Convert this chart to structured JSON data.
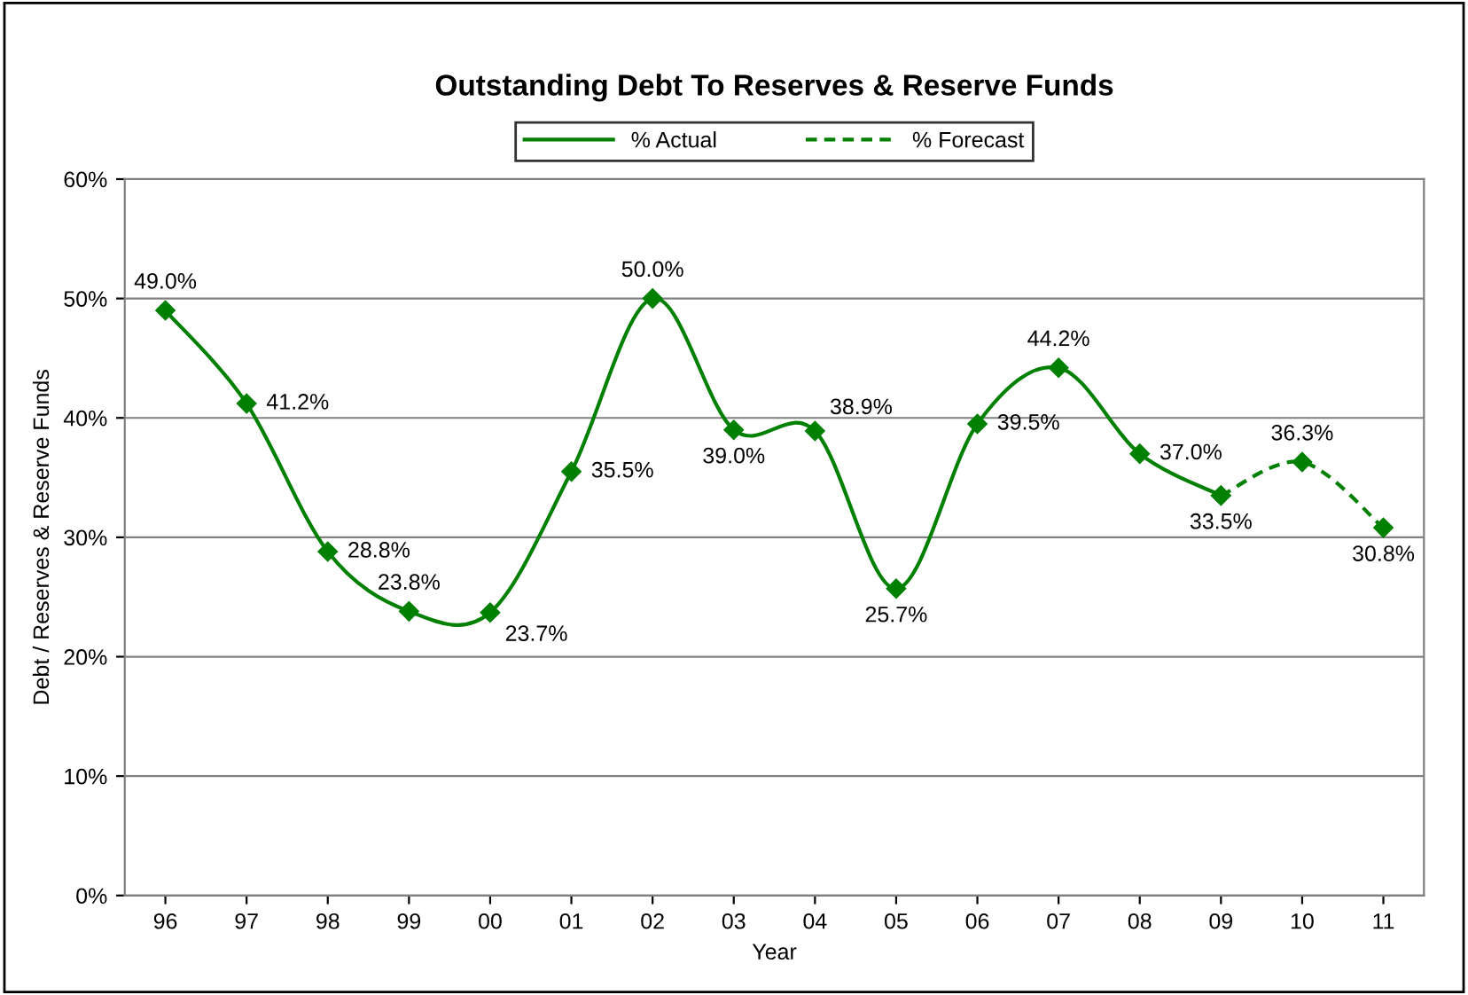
{
  "chart_data": {
    "type": "line",
    "title": "Outstanding Debt To Reserves & Reserve Funds",
    "xlabel": "Year",
    "ylabel": "Debt / Reserves & Reserve Funds",
    "categories": [
      "96",
      "97",
      "98",
      "99",
      "00",
      "01",
      "02",
      "03",
      "04",
      "05",
      "06",
      "07",
      "08",
      "09",
      "10",
      "11"
    ],
    "series": [
      {
        "name": "% Actual",
        "color": "#008000",
        "line_style": "solid",
        "values": [
          49.0,
          41.2,
          28.8,
          23.8,
          23.7,
          35.5,
          50.0,
          39.0,
          38.9,
          25.7,
          39.5,
          44.2,
          37.0,
          33.5,
          null,
          null
        ],
        "value_labels": [
          "49.0%",
          "41.2%",
          "28.8%",
          "23.8%",
          "23.7%",
          "35.5%",
          "50.0%",
          "39.0%",
          "38.9%",
          "25.7%",
          "39.5%",
          "44.2%",
          "37.0%",
          "33.5%",
          null,
          null
        ]
      },
      {
        "name": "% Forecast",
        "color": "#008000",
        "line_style": "dashed",
        "values": [
          null,
          null,
          null,
          null,
          null,
          null,
          null,
          null,
          null,
          null,
          null,
          null,
          null,
          33.5,
          36.3,
          30.8
        ],
        "value_labels": [
          null,
          null,
          null,
          null,
          null,
          null,
          null,
          null,
          null,
          null,
          null,
          null,
          null,
          null,
          "36.3%",
          "30.8%"
        ]
      }
    ],
    "ylim": [
      0,
      60
    ],
    "yticks": [
      {
        "value": 0,
        "label": "0%"
      },
      {
        "value": 10,
        "label": "10%"
      },
      {
        "value": 20,
        "label": "20%"
      },
      {
        "value": 30,
        "label": "30%"
      },
      {
        "value": 40,
        "label": "40%"
      },
      {
        "value": 50,
        "label": "50%"
      },
      {
        "value": 60,
        "label": "60%"
      }
    ],
    "grid": "y",
    "legend": "top",
    "marker": "diamond"
  }
}
